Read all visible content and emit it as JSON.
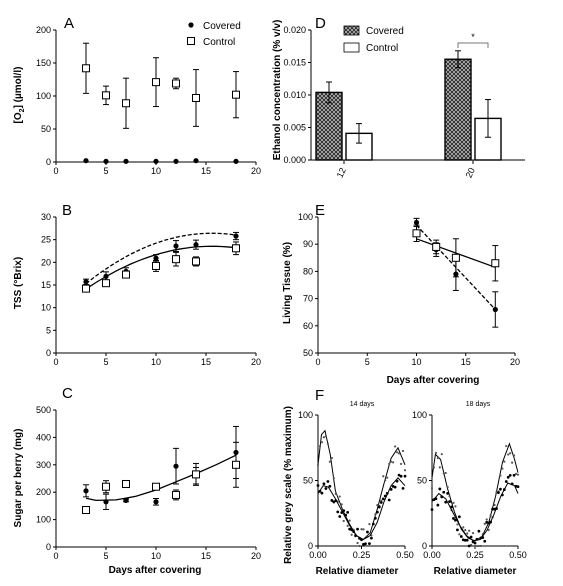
{
  "panels": {
    "A": {
      "letter": "A"
    },
    "B": {
      "letter": "B"
    },
    "C": {
      "letter": "C"
    },
    "D": {
      "letter": "D"
    },
    "E": {
      "letter": "E"
    },
    "F": {
      "letter": "F"
    }
  },
  "legend_A": {
    "covered": "Covered",
    "control": "Control"
  },
  "legend_D": {
    "covered": "Covered",
    "control": "Control",
    "significance": "*"
  },
  "chart_data": [
    {
      "panel": "A",
      "type": "scatter",
      "ylabel": "[O2] (µmol/l)",
      "ylabel_main": "[O",
      "ylabel_sub": "2",
      "ylabel_end": "] (µmol/l)",
      "xlabel": "",
      "xlim": [
        0,
        20
      ],
      "ylim": [
        0,
        200
      ],
      "xticks": [
        "0",
        "5",
        "10",
        "15",
        "20"
      ],
      "yticks": [
        "0",
        "50",
        "100",
        "150",
        "200"
      ],
      "series": [
        {
          "name": "Covered",
          "marker": "filled-circle",
          "x": [
            3,
            5,
            7,
            10,
            12,
            14,
            18
          ],
          "y": [
            2,
            1,
            1,
            1,
            1,
            2,
            1
          ]
        },
        {
          "name": "Control",
          "marker": "open-square",
          "x": [
            3,
            5,
            7,
            10,
            12,
            14,
            18
          ],
          "y": [
            142,
            101,
            89,
            121,
            119,
            97,
            102
          ],
          "err": [
            38,
            14,
            38,
            37,
            8,
            43,
            35
          ]
        }
      ]
    },
    {
      "panel": "B",
      "type": "line",
      "ylabel": "TSS (°Brix)",
      "xlabel": "",
      "xlim": [
        0,
        20
      ],
      "ylim": [
        0,
        30
      ],
      "xticks": [
        "0",
        "5",
        "10",
        "15",
        "20"
      ],
      "yticks": [
        "0",
        "5",
        "10",
        "15",
        "20",
        "25",
        "30"
      ],
      "series": [
        {
          "name": "Covered",
          "marker": "filled-circle",
          "fit": "dashed",
          "x": [
            3,
            5,
            7,
            10,
            12,
            14,
            18
          ],
          "y": [
            15.7,
            16.9,
            18.0,
            20.9,
            23.6,
            23.9,
            25.8
          ],
          "err": [
            0.6,
            1.0,
            0.8,
            0.8,
            1.2,
            1.0,
            0.8
          ],
          "fit_y": [
            15.3,
            24.6,
            26.0
          ]
        },
        {
          "name": "Control",
          "marker": "open-square",
          "fit": "solid",
          "x": [
            3,
            5,
            7,
            10,
            12,
            14,
            18
          ],
          "y": [
            14.2,
            15.4,
            17.3,
            19.2,
            20.7,
            20.2,
            23.1
          ],
          "err": [
            0.6,
            0.7,
            0.7,
            1.2,
            1.5,
            1.0,
            1.4
          ],
          "fit_y": [
            14.1,
            22.0,
            23.2
          ]
        }
      ]
    },
    {
      "panel": "C",
      "type": "line",
      "ylabel": "Sugar per berry (mg)",
      "xlabel": "Days after covering",
      "xlim": [
        0,
        20
      ],
      "ylim": [
        0,
        500
      ],
      "xticks": [
        "0",
        "5",
        "10",
        "15",
        "20"
      ],
      "yticks": [
        "0",
        "100",
        "200",
        "300",
        "400",
        "500"
      ],
      "series": [
        {
          "name": "Covered",
          "marker": "filled-circle",
          "x": [
            3,
            5,
            7,
            10,
            12,
            14,
            18
          ],
          "y": [
            205,
            165,
            170,
            165,
            295,
            260,
            345
          ],
          "err": [
            22,
            28,
            5,
            12,
            65,
            30,
            95
          ]
        },
        {
          "name": "Control",
          "marker": "open-square",
          "x": [
            3,
            5,
            7,
            10,
            12,
            14,
            18
          ],
          "y": [
            135,
            220,
            230,
            220,
            190,
            265,
            300
          ],
          "err": [
            12,
            22,
            5,
            5,
            18,
            40,
            82
          ]
        }
      ],
      "fit": {
        "x": [
          3,
          4,
          6,
          8,
          10,
          12,
          14,
          16,
          18
        ],
        "y": [
          178,
          170,
          172,
          185,
          208,
          238,
          268,
          300,
          335
        ]
      }
    },
    {
      "panel": "D",
      "type": "bar",
      "ylabel": "Ethanol concentration (% v/v)",
      "xlabel": "",
      "categories": [
        "12",
        "20"
      ],
      "ylim": [
        0,
        0.02
      ],
      "yticks": [
        "0.000",
        "0.005",
        "0.010",
        "0.015",
        "0.020"
      ],
      "series": [
        {
          "name": "Covered",
          "pattern": "crosshatch",
          "values": [
            0.0104,
            0.0155
          ],
          "err": [
            0.0016,
            0.0013
          ]
        },
        {
          "name": "Control",
          "pattern": "open",
          "values": [
            0.0041,
            0.0064
          ],
          "err": [
            0.0015,
            0.0029
          ]
        }
      ]
    },
    {
      "panel": "E",
      "type": "line",
      "ylabel": "Living Tissue (%)",
      "xlabel": "Days after covering",
      "xlim": [
        0,
        20
      ],
      "ylim": [
        50,
        100
      ],
      "xticks": [
        "0",
        "5",
        "10",
        "15",
        "20"
      ],
      "yticks": [
        "50",
        "60",
        "70",
        "80",
        "90",
        "100"
      ],
      "series": [
        {
          "name": "Covered",
          "marker": "filled-circle",
          "fit": "dashed",
          "x": [
            10,
            12,
            14,
            18
          ],
          "y": [
            98,
            88,
            79,
            66
          ],
          "err": [
            1.5,
            2.5,
            6,
            6.5
          ]
        },
        {
          "name": "Control",
          "marker": "open-square",
          "fit": "solid",
          "x": [
            10,
            12,
            14,
            18
          ],
          "y": [
            94,
            89,
            85,
            83
          ],
          "err": [
            3,
            2.5,
            7,
            6.5
          ]
        }
      ],
      "fits": {
        "covered": [
          97,
          66
        ],
        "control": [
          92,
          81.5
        ]
      }
    },
    {
      "panel": "F",
      "type": "scatter",
      "ylabel": "Relative grey scale (% maximum)",
      "xlabel": "Relative diameter",
      "subplots": [
        {
          "title": "14 days",
          "xlim": [
            0,
            0.5
          ],
          "ylim": [
            0,
            100
          ],
          "xticks": [
            "0.00",
            "0.25",
            "0.50"
          ],
          "yticks": [
            "0",
            "50",
            "100"
          ],
          "curve_a": {
            "x": [
              0,
              0.02,
              0.04,
              0.07,
              0.1,
              0.14,
              0.18,
              0.22,
              0.26,
              0.3,
              0.34,
              0.38,
              0.42,
              0.46,
              0.5
            ],
            "y": [
              62,
              85,
              88,
              70,
              42,
              28,
              17,
              8,
              5,
              10,
              28,
              48,
              67,
              75,
              62
            ]
          },
          "curve_b": {
            "x": [
              0,
              0.03,
              0.06,
              0.1,
              0.14,
              0.18,
              0.22,
              0.26,
              0.3,
              0.34,
              0.38,
              0.42,
              0.46,
              0.5
            ],
            "y": [
              40,
              46,
              45,
              36,
              26,
              16,
              8,
              5,
              8,
              18,
              34,
              46,
              52,
              46
            ]
          }
        },
        {
          "title": "18 days",
          "xlim": [
            0,
            0.5
          ],
          "ylim": [
            0,
            100
          ],
          "xticks": [
            "0.00",
            "0.25",
            "0.50"
          ],
          "yticks": [
            "0",
            "50",
            "100"
          ],
          "curve_a": {
            "x": [
              0,
              0.02,
              0.05,
              0.09,
              0.13,
              0.17,
              0.21,
              0.25,
              0.29,
              0.33,
              0.37,
              0.41,
              0.45,
              0.48,
              0.5
            ],
            "y": [
              52,
              70,
              66,
              44,
              26,
              13,
              6,
              4,
              7,
              18,
              38,
              64,
              78,
              66,
              56
            ]
          },
          "curve_b": {
            "x": [
              0,
              0.04,
              0.08,
              0.12,
              0.16,
              0.2,
              0.24,
              0.28,
              0.32,
              0.36,
              0.4,
              0.44,
              0.48,
              0.5
            ],
            "y": [
              34,
              40,
              36,
              26,
              16,
              8,
              4,
              5,
              12,
              24,
              38,
              48,
              46,
              40
            ]
          }
        }
      ]
    }
  ]
}
